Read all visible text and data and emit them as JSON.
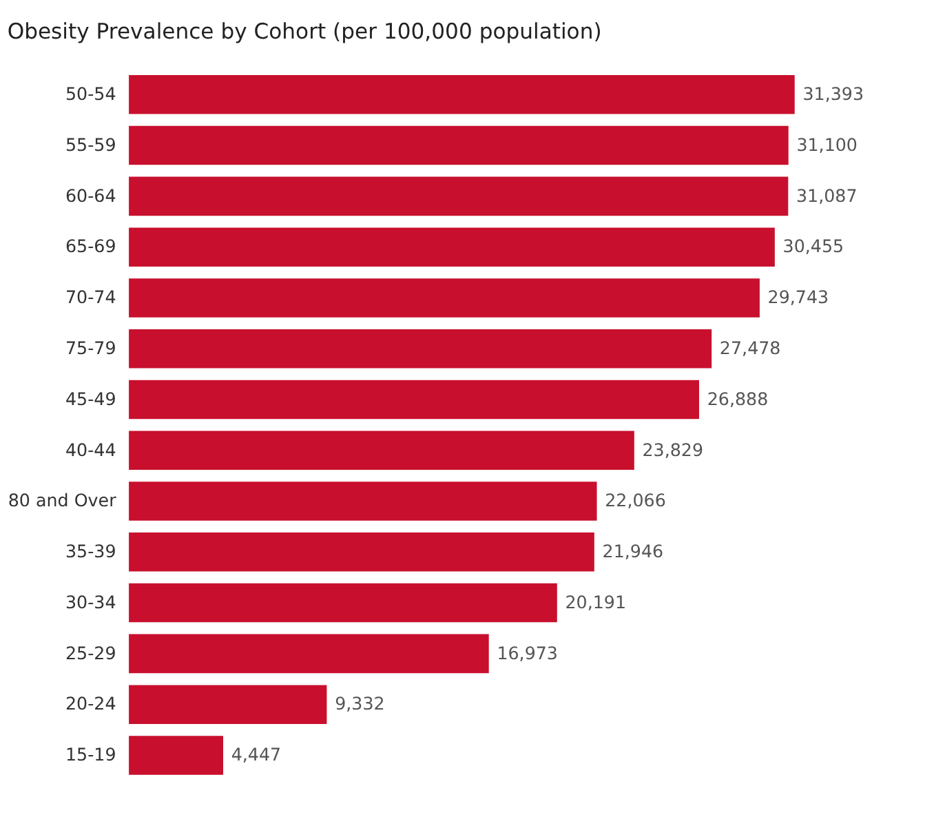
{
  "chart_data": {
    "type": "bar",
    "orientation": "horizontal",
    "title": "Obesity Prevalence by Cohort (per 100,000 population)",
    "categories": [
      "50-54",
      "55-59",
      "60-64",
      "65-69",
      "70-74",
      "75-79",
      "45-49",
      "40-44",
      "80 and Over",
      "35-39",
      "30-34",
      "25-29",
      "20-24",
      "15-19"
    ],
    "values": [
      31393,
      31100,
      31087,
      30455,
      29743,
      27478,
      26888,
      23829,
      22066,
      21946,
      20191,
      16973,
      9332,
      4447
    ],
    "value_labels": [
      "31,393",
      "31,100",
      "31,087",
      "30,455",
      "29,743",
      "27,478",
      "26,888",
      "23,829",
      "22,066",
      "21,946",
      "20,191",
      "16,973",
      "9,332",
      "4,447"
    ],
    "color": "#c8102e",
    "grid": false
  }
}
